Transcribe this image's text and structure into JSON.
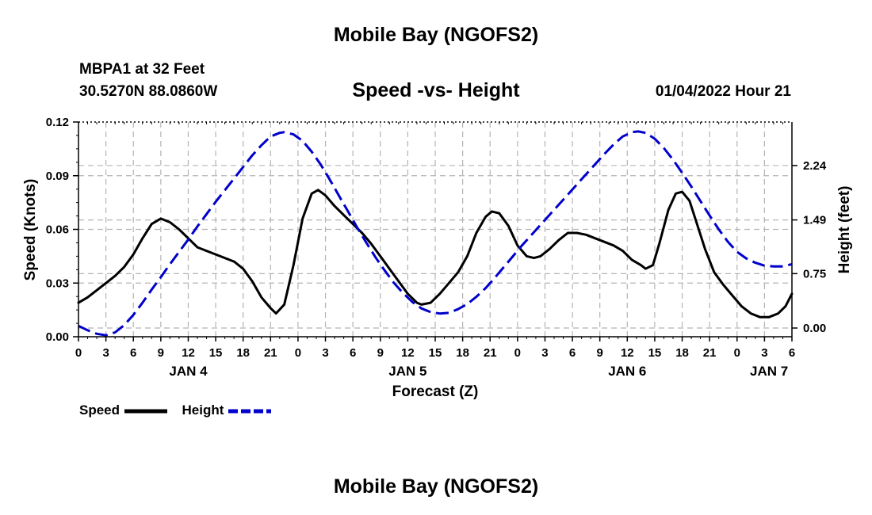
{
  "page": {
    "title": "Mobile Bay (NGOFS2)",
    "station_name": "MBPA1 at 32 Feet",
    "coords": "30.5270N  88.0860W",
    "chart_title": "Speed -vs- Height",
    "date": "01/04/2022 Hour 21",
    "footer_title": "Mobile Bay (NGOFS2)"
  },
  "chart_data": {
    "type": "line",
    "title": "Speed -vs- Height",
    "xlabel": "Forecast (Z)",
    "ylabel_left": "Speed (Knots)",
    "ylabel_right": "Height (feet)",
    "x_range": [
      0,
      78
    ],
    "x_tick_labels": [
      "0",
      "3",
      "6",
      "9",
      "12",
      "15",
      "18",
      "21",
      "0",
      "3",
      "6",
      "9",
      "12",
      "15",
      "18",
      "21",
      "0",
      "3",
      "6",
      "9",
      "12",
      "15",
      "18",
      "21",
      "0",
      "3",
      "6"
    ],
    "day_labels": [
      {
        "label": "JAN 4",
        "x": 12
      },
      {
        "label": "JAN 5",
        "x": 36
      },
      {
        "label": "JAN 6",
        "x": 60
      },
      {
        "label": "JAN 7",
        "x": 75.5
      }
    ],
    "y_left_range": [
      0,
      0.12
    ],
    "y_left_ticks": [
      "0.00",
      "0.03",
      "0.06",
      "0.09",
      "0.12"
    ],
    "y_left_tick_values": [
      0,
      0.03,
      0.06,
      0.09,
      0.12
    ],
    "y_right_range": [
      -0.12,
      2.84
    ],
    "y_right_ticks": [
      "0.00",
      "0.75",
      "1.49",
      "2.24"
    ],
    "y_right_tick_values": [
      0,
      0.75,
      1.49,
      2.24
    ],
    "grid": true,
    "series": [
      {
        "name": "Speed",
        "axis": "left",
        "color": "#000000",
        "style": "solid",
        "points": [
          [
            0,
            0.019
          ],
          [
            1,
            0.022
          ],
          [
            2,
            0.026
          ],
          [
            3,
            0.03
          ],
          [
            4,
            0.034
          ],
          [
            5,
            0.039
          ],
          [
            6,
            0.046
          ],
          [
            7,
            0.055
          ],
          [
            8,
            0.063
          ],
          [
            9,
            0.066
          ],
          [
            10,
            0.064
          ],
          [
            11,
            0.06
          ],
          [
            12,
            0.055
          ],
          [
            13,
            0.05
          ],
          [
            14,
            0.048
          ],
          [
            15,
            0.046
          ],
          [
            16,
            0.044
          ],
          [
            17,
            0.042
          ],
          [
            18,
            0.038
          ],
          [
            19,
            0.031
          ],
          [
            20,
            0.022
          ],
          [
            21,
            0.016
          ],
          [
            21.6,
            0.013
          ],
          [
            22.5,
            0.018
          ],
          [
            23.5,
            0.04
          ],
          [
            24.5,
            0.066
          ],
          [
            25.5,
            0.08
          ],
          [
            26.2,
            0.082
          ],
          [
            27,
            0.079
          ],
          [
            28,
            0.073
          ],
          [
            29,
            0.068
          ],
          [
            30,
            0.063
          ],
          [
            31,
            0.058
          ],
          [
            32,
            0.052
          ],
          [
            33,
            0.045
          ],
          [
            34,
            0.038
          ],
          [
            35,
            0.031
          ],
          [
            36,
            0.024
          ],
          [
            37,
            0.019
          ],
          [
            37.5,
            0.018
          ],
          [
            38.5,
            0.019
          ],
          [
            39.5,
            0.024
          ],
          [
            40.5,
            0.03
          ],
          [
            41.5,
            0.036
          ],
          [
            42.5,
            0.045
          ],
          [
            43.5,
            0.058
          ],
          [
            44.5,
            0.067
          ],
          [
            45.2,
            0.07
          ],
          [
            46,
            0.069
          ],
          [
            47,
            0.062
          ],
          [
            48,
            0.051
          ],
          [
            49,
            0.045
          ],
          [
            49.8,
            0.044
          ],
          [
            50.5,
            0.045
          ],
          [
            51.5,
            0.049
          ],
          [
            52.5,
            0.054
          ],
          [
            53.5,
            0.058
          ],
          [
            54.5,
            0.058
          ],
          [
            55.5,
            0.057
          ],
          [
            56.5,
            0.055
          ],
          [
            57.5,
            0.053
          ],
          [
            58.5,
            0.051
          ],
          [
            59.5,
            0.048
          ],
          [
            60.5,
            0.043
          ],
          [
            61.5,
            0.04
          ],
          [
            62,
            0.038
          ],
          [
            62.8,
            0.04
          ],
          [
            63.5,
            0.052
          ],
          [
            64.5,
            0.071
          ],
          [
            65.3,
            0.08
          ],
          [
            66,
            0.081
          ],
          [
            66.8,
            0.076
          ],
          [
            67.5,
            0.065
          ],
          [
            68.5,
            0.049
          ],
          [
            69.5,
            0.036
          ],
          [
            70.5,
            0.029
          ],
          [
            71.5,
            0.023
          ],
          [
            72.5,
            0.017
          ],
          [
            73.5,
            0.013
          ],
          [
            74.5,
            0.011
          ],
          [
            75.5,
            0.011
          ],
          [
            76.5,
            0.013
          ],
          [
            77.3,
            0.017
          ],
          [
            78,
            0.024
          ]
        ]
      },
      {
        "name": "Height",
        "axis": "right",
        "color": "#0000cc",
        "style": "dashed",
        "points": [
          [
            0,
            0.03
          ],
          [
            1,
            -0.03
          ],
          [
            2,
            -0.08
          ],
          [
            3,
            -0.1
          ],
          [
            4,
            -0.06
          ],
          [
            5,
            0.04
          ],
          [
            6,
            0.18
          ],
          [
            7,
            0.35
          ],
          [
            8,
            0.53
          ],
          [
            9,
            0.7
          ],
          [
            10,
            0.88
          ],
          [
            11,
            1.05
          ],
          [
            12,
            1.22
          ],
          [
            13,
            1.4
          ],
          [
            14,
            1.57
          ],
          [
            15,
            1.74
          ],
          [
            16,
            1.9
          ],
          [
            17,
            2.06
          ],
          [
            18,
            2.22
          ],
          [
            19,
            2.38
          ],
          [
            20,
            2.52
          ],
          [
            21,
            2.64
          ],
          [
            22,
            2.69
          ],
          [
            22.5,
            2.7
          ],
          [
            23.5,
            2.67
          ],
          [
            24.5,
            2.58
          ],
          [
            25.5,
            2.43
          ],
          [
            26.5,
            2.25
          ],
          [
            27.5,
            2.04
          ],
          [
            28.5,
            1.82
          ],
          [
            29.5,
            1.6
          ],
          [
            30.5,
            1.38
          ],
          [
            31.5,
            1.17
          ],
          [
            32.5,
            0.97
          ],
          [
            33.5,
            0.79
          ],
          [
            34.5,
            0.62
          ],
          [
            35.5,
            0.48
          ],
          [
            36.5,
            0.36
          ],
          [
            37.5,
            0.27
          ],
          [
            38.5,
            0.22
          ],
          [
            39.5,
            0.2
          ],
          [
            40.5,
            0.21
          ],
          [
            41.5,
            0.26
          ],
          [
            42.5,
            0.33
          ],
          [
            43.5,
            0.43
          ],
          [
            44.5,
            0.55
          ],
          [
            45.5,
            0.69
          ],
          [
            46.5,
            0.84
          ],
          [
            47.5,
            0.99
          ],
          [
            48.5,
            1.14
          ],
          [
            49.5,
            1.28
          ],
          [
            50.5,
            1.42
          ],
          [
            51.5,
            1.56
          ],
          [
            52.5,
            1.7
          ],
          [
            53.5,
            1.84
          ],
          [
            54.5,
            1.98
          ],
          [
            55.5,
            2.12
          ],
          [
            56.5,
            2.26
          ],
          [
            57.5,
            2.4
          ],
          [
            58.5,
            2.53
          ],
          [
            59.5,
            2.64
          ],
          [
            60.5,
            2.7
          ],
          [
            61.2,
            2.71
          ],
          [
            62,
            2.69
          ],
          [
            63,
            2.61
          ],
          [
            64,
            2.48
          ],
          [
            65,
            2.32
          ],
          [
            66,
            2.14
          ],
          [
            67,
            1.95
          ],
          [
            68,
            1.75
          ],
          [
            69,
            1.55
          ],
          [
            70,
            1.36
          ],
          [
            71,
            1.19
          ],
          [
            72,
            1.05
          ],
          [
            73,
            0.96
          ],
          [
            74,
            0.9
          ],
          [
            75,
            0.86
          ],
          [
            76,
            0.85
          ],
          [
            77,
            0.85
          ],
          [
            78,
            0.88
          ]
        ]
      }
    ]
  },
  "legend": {
    "speed_label": "Speed",
    "height_label": "Height"
  }
}
